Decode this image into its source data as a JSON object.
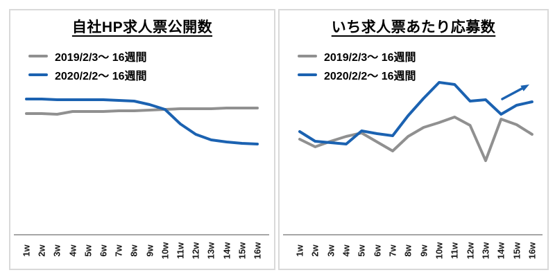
{
  "chart_data": [
    {
      "type": "line",
      "title": "自社HP求人票公開数",
      "xlabel": "",
      "ylabel": "",
      "units": "relative level (y-axis unlabeled in source)",
      "grid": false,
      "legend_position": "top-left",
      "categories": [
        "1w",
        "2w",
        "3w",
        "4w",
        "5w",
        "6w",
        "7w",
        "8w",
        "9w",
        "10w",
        "11w",
        "12w",
        "13w",
        "14w",
        "15w",
        "16w"
      ],
      "series": [
        {
          "name": "2019/2/3〜 16週間",
          "color": "#909090",
          "values": [
            175,
            175,
            174,
            178,
            178,
            178,
            179,
            179,
            180,
            181,
            182,
            182,
            182,
            183,
            183,
            183
          ]
        },
        {
          "name": "2020/2/2〜 16週間",
          "color": "#1b62b1",
          "values": [
            196,
            196,
            195,
            195,
            195,
            195,
            194,
            193,
            188,
            181,
            160,
            145,
            137,
            134,
            132,
            131
          ]
        }
      ]
    },
    {
      "type": "line",
      "title": "いち求人票あたり応募数",
      "xlabel": "",
      "ylabel": "",
      "units": "relative level (y-axis unlabeled in source)",
      "grid": false,
      "legend_position": "top-left",
      "categories": [
        "1w",
        "2w",
        "3w",
        "4w",
        "5w",
        "6w",
        "7w",
        "8w",
        "9w",
        "10w",
        "11w",
        "12w",
        "13w",
        "14w",
        "15w",
        "16w"
      ],
      "series": [
        {
          "name": "2019/2/3〜 16週間",
          "color": "#909090",
          "values": [
            138,
            127,
            135,
            142,
            147,
            134,
            121,
            142,
            155,
            162,
            170,
            158,
            107,
            167,
            159,
            145
          ]
        },
        {
          "name": "2020/2/2〜 16週間",
          "color": "#1b62b1",
          "values": [
            149,
            135,
            133,
            131,
            150,
            146,
            143,
            172,
            197,
            220,
            217,
            193,
            195,
            174,
            187,
            192
          ]
        }
      ],
      "annotation": {
        "type": "arrow",
        "direction": "up-right",
        "color": "#1b62b1"
      }
    }
  ]
}
